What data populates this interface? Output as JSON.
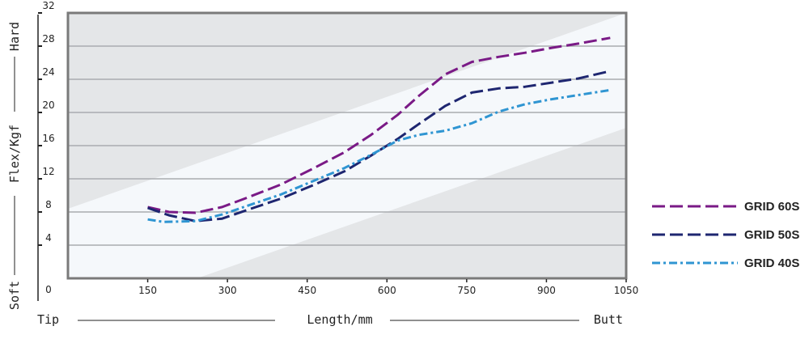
{
  "chart_data": {
    "type": "line",
    "title": "",
    "xlabel": "Length/mm",
    "ylabel": "Flex/Kgf",
    "x_end_left": "Tip",
    "x_end_right": "Butt",
    "y_end_bottom": "Soft",
    "y_end_top": "Hard",
    "xlim": [
      0,
      1050
    ],
    "ylim": [
      0,
      32
    ],
    "xticks": [
      0,
      150,
      300,
      450,
      600,
      750,
      900,
      1050
    ],
    "yticks": [
      4,
      8,
      12,
      16,
      20,
      24,
      28,
      32
    ],
    "grid": true,
    "legend_position": "right",
    "series": [
      {
        "name": "GRID 60S",
        "color": "#7a1a86",
        "dash": "long-dash",
        "x": [
          150,
          190,
          240,
          290,
          340,
          400,
          460,
          520,
          570,
          620,
          660,
          710,
          760,
          810,
          860,
          910,
          960,
          1020
        ],
        "y": [
          8.6,
          8.0,
          7.9,
          8.6,
          9.8,
          11.3,
          13.2,
          15.2,
          17.3,
          19.7,
          22.0,
          24.6,
          26.1,
          26.7,
          27.2,
          27.8,
          28.3,
          29.0
        ]
      },
      {
        "name": "GRID 50S",
        "color": "#1e2670",
        "dash": "long-dash",
        "x": [
          150,
          190,
          240,
          290,
          340,
          400,
          460,
          520,
          570,
          620,
          660,
          710,
          760,
          810,
          860,
          910,
          960,
          1020
        ],
        "y": [
          8.5,
          7.6,
          6.9,
          7.2,
          8.3,
          9.6,
          11.2,
          12.9,
          14.8,
          16.8,
          18.6,
          20.8,
          22.4,
          22.9,
          23.1,
          23.6,
          24.1,
          25.0
        ]
      },
      {
        "name": "GRID 40S",
        "color": "#2f95d2",
        "dash": "dash-dot",
        "x": [
          150,
          180,
          240,
          290,
          340,
          400,
          460,
          520,
          570,
          620,
          660,
          710,
          760,
          810,
          860,
          910,
          960,
          1020
        ],
        "y": [
          7.1,
          6.8,
          6.9,
          7.7,
          8.8,
          10.1,
          11.7,
          13.3,
          14.9,
          16.6,
          17.3,
          17.8,
          18.7,
          20.1,
          21.0,
          21.6,
          22.1,
          22.7
        ]
      }
    ]
  }
}
